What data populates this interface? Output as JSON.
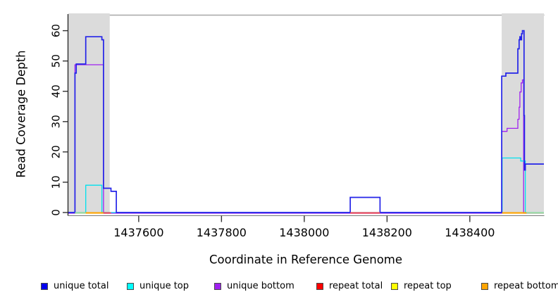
{
  "chart_data": {
    "type": "line",
    "title": "",
    "xlabel": "Coordinate in Reference Genome",
    "ylabel": "Read Coverage Depth",
    "grid": false,
    "x_axis": {
      "min": 1437430,
      "max": 1438579,
      "ticks": [
        1437600,
        1437800,
        1438000,
        1438200,
        1438400
      ],
      "tick_labels": [
        "1437600",
        "1437800",
        "1438000",
        "1438200",
        "1438400"
      ]
    },
    "y_axis": {
      "min": 0,
      "max": 65.5,
      "ticks": [
        0,
        10,
        20,
        30,
        40,
        50,
        60
      ],
      "tick_labels": [
        "0",
        "10",
        "20",
        "30",
        "40",
        "50",
        "60"
      ]
    },
    "shaded_regions": [
      {
        "name": "repeat-region-left",
        "x0": 1437430,
        "x1": 1437530,
        "color": "#dbdbdb"
      },
      {
        "name": "repeat-region-right",
        "x0": 1438477,
        "x1": 1438579,
        "color": "#dbdbdb"
      }
    ],
    "series": [
      {
        "name": "unique bottom",
        "color": "#a020f0",
        "width": 1.3,
        "points": [
          [
            1437430,
            0
          ],
          [
            1437446,
            0
          ],
          [
            1437446,
            49
          ],
          [
            1437515,
            49
          ],
          [
            1437515,
            0
          ],
          [
            1438477,
            0
          ],
          [
            1438477,
            27
          ],
          [
            1438490,
            27
          ],
          [
            1438490,
            28
          ],
          [
            1438516,
            28
          ],
          [
            1438516,
            31
          ],
          [
            1438519,
            31
          ],
          [
            1438519,
            35
          ],
          [
            1438521,
            35
          ],
          [
            1438521,
            40
          ],
          [
            1438524,
            40
          ],
          [
            1438524,
            43
          ],
          [
            1438527,
            43
          ],
          [
            1438527,
            44
          ],
          [
            1438530,
            44
          ],
          [
            1438530,
            0
          ],
          [
            1438579,
            0
          ]
        ]
      },
      {
        "name": "unique top",
        "color": "#00e0ee",
        "width": 1.3,
        "points": [
          [
            1437430,
            0
          ],
          [
            1437472,
            0
          ],
          [
            1437472,
            9
          ],
          [
            1437511,
            9
          ],
          [
            1437511,
            0
          ],
          [
            1438478,
            0
          ],
          [
            1438478,
            18
          ],
          [
            1438523,
            18
          ],
          [
            1438523,
            17
          ],
          [
            1438534,
            17
          ],
          [
            1438534,
            0
          ],
          [
            1438579,
            0
          ]
        ]
      },
      {
        "name": "unique total",
        "color": "#2323e8",
        "width": 1.7,
        "points": [
          [
            1437430,
            0
          ],
          [
            1437446,
            0
          ],
          [
            1437446,
            46
          ],
          [
            1437449,
            46
          ],
          [
            1437449,
            49
          ],
          [
            1437472,
            49
          ],
          [
            1437472,
            58
          ],
          [
            1437511,
            58
          ],
          [
            1437511,
            57
          ],
          [
            1437515,
            57
          ],
          [
            1437515,
            8
          ],
          [
            1437533,
            8
          ],
          [
            1437533,
            7
          ],
          [
            1437546,
            7
          ],
          [
            1437546,
            0
          ],
          [
            1438111,
            0
          ],
          [
            1438111,
            5
          ],
          [
            1438183,
            5
          ],
          [
            1438183,
            0
          ],
          [
            1438477,
            0
          ],
          [
            1438477,
            45
          ],
          [
            1438487,
            45
          ],
          [
            1438487,
            46
          ],
          [
            1438516,
            46
          ],
          [
            1438516,
            54
          ],
          [
            1438519,
            54
          ],
          [
            1438519,
            57
          ],
          [
            1438521,
            57
          ],
          [
            1438521,
            58
          ],
          [
            1438523,
            58
          ],
          [
            1438523,
            57
          ],
          [
            1438525,
            57
          ],
          [
            1438525,
            59
          ],
          [
            1438527,
            59
          ],
          [
            1438527,
            60
          ],
          [
            1438531,
            60
          ],
          [
            1438531,
            32
          ],
          [
            1438532,
            32
          ],
          [
            1438532,
            14
          ],
          [
            1438534,
            14
          ],
          [
            1438534,
            16
          ],
          [
            1438579,
            16
          ]
        ]
      }
    ],
    "baseline_segments": [
      {
        "series": "repeat top",
        "x0": 1437446,
        "x1": 1437472,
        "value": 0,
        "rendered_color": "#9fd89b"
      },
      {
        "series": "repeat bottom",
        "x0": 1437472,
        "x1": 1437515,
        "value": 0,
        "rendered_color": "#ffa500"
      },
      {
        "series": "repeat total",
        "x0": 1437515,
        "x1": 1437533,
        "value": 0,
        "rendered_color": "#ee4455"
      },
      {
        "series": "repeat total",
        "x0": 1438111,
        "x1": 1438183,
        "value": 0,
        "rendered_color": "#ee4455"
      },
      {
        "series": "repeat bottom",
        "x0": 1438478,
        "x1": 1438537,
        "value": 0,
        "rendered_color": "#ffa500"
      },
      {
        "series": "repeat top",
        "x0": 1438537,
        "x1": 1438579,
        "value": 0,
        "rendered_color": "#9fd89b"
      }
    ],
    "legend": [
      {
        "label": "unique total",
        "color": "#0000ee"
      },
      {
        "label": "unique top",
        "color": "#00ffff"
      },
      {
        "label": "unique bottom",
        "color": "#a020f0"
      },
      {
        "label": "repeat total",
        "color": "#ff0000"
      },
      {
        "label": "repeat top",
        "color": "#ffff00"
      },
      {
        "label": "repeat bottom",
        "color": "#ffa500"
      }
    ],
    "legend_position": "bottom"
  }
}
